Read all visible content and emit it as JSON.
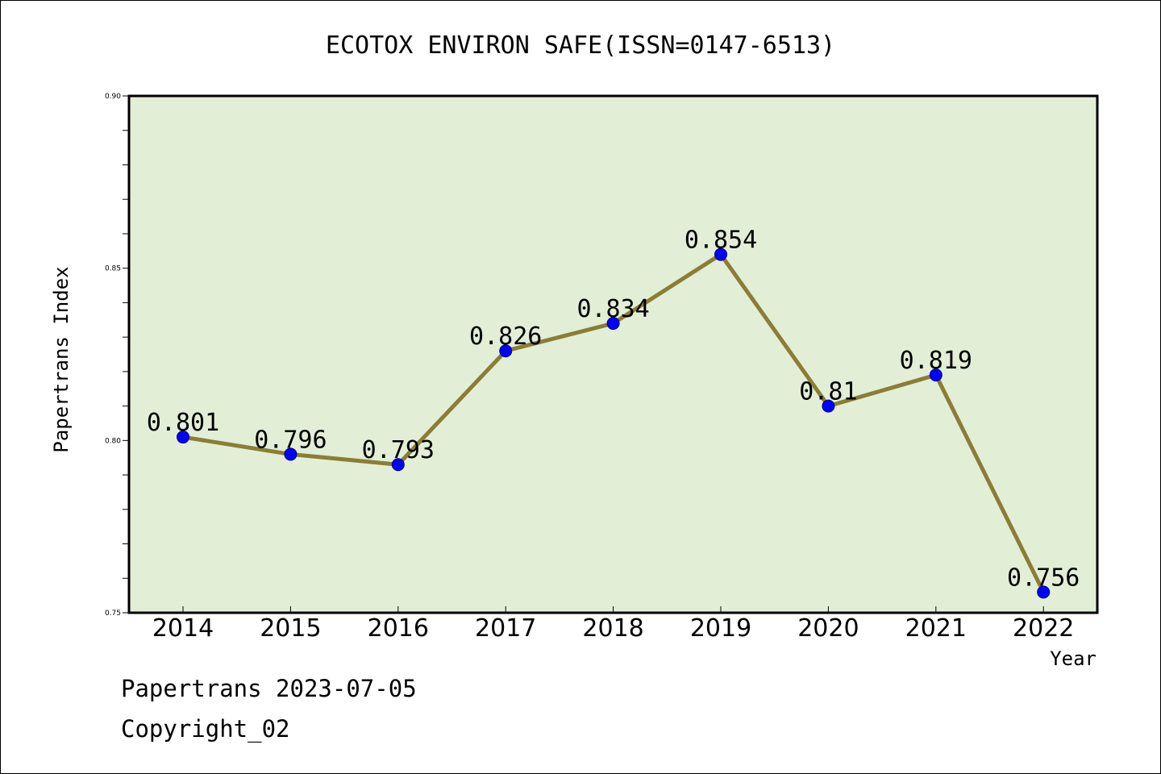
{
  "chart_data": {
    "type": "line",
    "title": "ECOTOX ENVIRON SAFE(ISSN=0147-6513)",
    "xlabel": "Year",
    "ylabel": "Papertrans Index",
    "categories": [
      "2014",
      "2015",
      "2016",
      "2017",
      "2018",
      "2019",
      "2020",
      "2021",
      "2022"
    ],
    "values": [
      0.801,
      0.796,
      0.793,
      0.826,
      0.834,
      0.854,
      0.81,
      0.819,
      0.756
    ],
    "data_labels": [
      "0.801",
      "0.796",
      "0.793",
      "0.826",
      "0.834",
      "0.854",
      "0.81",
      "0.819",
      "0.756"
    ],
    "ylim": [
      0.75,
      0.9
    ],
    "yticks": [
      0.75,
      0.8,
      0.85,
      0.9
    ],
    "ytick_labels": [
      "0.75",
      "0.80",
      "0.85",
      "0.90"
    ],
    "grid": false,
    "line_color": "#8b7d34",
    "marker_color": "#0000ff",
    "plot_background": "#e2efd6"
  },
  "footer": {
    "line1": "Papertrans 2023-07-05",
    "line2": "Copyright_02"
  }
}
